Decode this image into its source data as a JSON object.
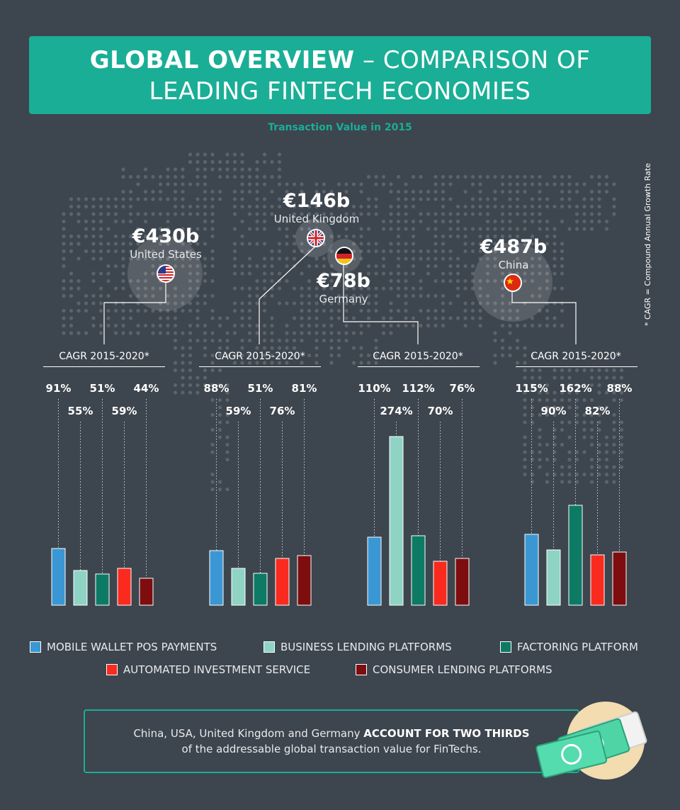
{
  "header": {
    "title_bold": "GLOBAL OVERVIEW",
    "title_rest": " – COMPARISON OF",
    "title_line2": "LEADING FINTECH ECONOMIES",
    "subtitle": "Transaction Value in 2015"
  },
  "footnote": "* CAGR = Compound Annual Growth Rate",
  "countries": [
    {
      "value": "€430b",
      "name": "United States",
      "flag": "us-flag"
    },
    {
      "value": "€146b",
      "name": "United Kingdom",
      "flag": "uk-flag"
    },
    {
      "value": "€78b",
      "name": "Germany",
      "flag": "germany-flag"
    },
    {
      "value": "€487b",
      "name": "China",
      "flag": "china-flag"
    }
  ],
  "cagr_label": "CAGR 2015-2020*",
  "colors": {
    "mobile_wallet": "#3a97d3",
    "business_lending": "#8fd3c5",
    "factoring": "#0d7a65",
    "automated_investment": "#fb2a1e",
    "consumer_lending": "#7d0d0f",
    "accent": "#1aae96",
    "background": "#3d454e"
  },
  "legend": [
    {
      "label": "MOBILE WALLET POS PAYMENTS",
      "color": "#3a97d3"
    },
    {
      "label": "BUSINESS LENDING PLATFORMS",
      "color": "#8fd3c5"
    },
    {
      "label": "FACTORING PLATFORM",
      "color": "#0d7a65"
    },
    {
      "label": "AUTOMATED INVESTMENT SERVICE",
      "color": "#fb2a1e"
    },
    {
      "label": "CONSUMER LENDING PLATFORMS",
      "color": "#7d0d0f"
    }
  ],
  "callout": {
    "text_a": "China, USA, United Kingdom and Germany ",
    "text_bold": "ACCOUNT FOR TWO THIRDS",
    "text_b": "of the addressable global transaction value for FinTechs."
  },
  "chart_data": {
    "type": "bar",
    "categories": [
      "United States",
      "United Kingdom",
      "Germany",
      "China"
    ],
    "series": [
      {
        "name": "MOBILE WALLET POS PAYMENTS",
        "values": [
          80,
          77,
          96,
          100
        ],
        "cagr": [
          "91%",
          "88%",
          "110%",
          "115%"
        ]
      },
      {
        "name": "BUSINESS LENDING PLATFORMS",
        "values": [
          49,
          52,
          238,
          78
        ],
        "cagr": [
          "55%",
          "59%",
          "274%",
          "90%"
        ]
      },
      {
        "name": "FACTORING PLATFORM",
        "values": [
          44,
          45,
          98,
          141
        ],
        "cagr": [
          "51%",
          "51%",
          "112%",
          "162%"
        ]
      },
      {
        "name": "AUTOMATED INVESTMENT SERVICE",
        "values": [
          52,
          66,
          62,
          71
        ],
        "cagr": [
          "59%",
          "76%",
          "70%",
          "82%"
        ]
      },
      {
        "name": "CONSUMER LENDING PLATFORMS",
        "values": [
          38,
          70,
          66,
          75
        ],
        "cagr": [
          "44%",
          "81%",
          "76%",
          "88%"
        ]
      }
    ],
    "legend_position": "bottom",
    "grid": false
  }
}
